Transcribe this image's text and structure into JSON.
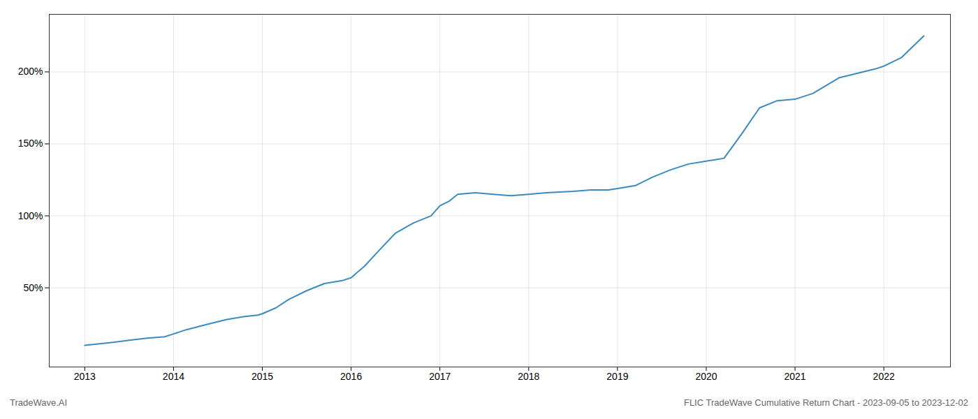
{
  "chart_data": {
    "type": "line",
    "title": "FLIC TradeWave Cumulative Return Chart - 2023-09-05 to 2023-12-02",
    "watermark": "TradeWave.AI",
    "color": "#3a8bbf",
    "grid": true,
    "x": [
      2013.0,
      2013.15,
      2013.3,
      2013.5,
      2013.7,
      2013.9,
      2014.0,
      2014.15,
      2014.4,
      2014.6,
      2014.8,
      2014.95,
      2015.0,
      2015.15,
      2015.3,
      2015.5,
      2015.7,
      2015.9,
      2016.0,
      2016.15,
      2016.3,
      2016.5,
      2016.7,
      2016.9,
      2017.0,
      2017.1,
      2017.2,
      2017.4,
      2017.6,
      2017.8,
      2018.0,
      2018.2,
      2018.5,
      2018.7,
      2018.9,
      2019.0,
      2019.2,
      2019.4,
      2019.6,
      2019.8,
      2020.0,
      2020.1,
      2020.2,
      2020.4,
      2020.6,
      2020.8,
      2021.0,
      2021.2,
      2021.5,
      2021.7,
      2021.9,
      2022.0,
      2022.2,
      2022.45
    ],
    "values": [
      10,
      11,
      12,
      13.5,
      15,
      16,
      18,
      21,
      25,
      28,
      30,
      31,
      32,
      36,
      42,
      48,
      53,
      55,
      57,
      65,
      75,
      88,
      95,
      100,
      107,
      110,
      115,
      116,
      115,
      114,
      115,
      116,
      117,
      118,
      118,
      119,
      121,
      127,
      132,
      136,
      138,
      139,
      140,
      157,
      175,
      180,
      181,
      185,
      196,
      199,
      202,
      204,
      210,
      225
    ],
    "xlim": [
      2012.6,
      2022.75
    ],
    "xticks": [
      2013,
      2014,
      2015,
      2016,
      2017,
      2018,
      2019,
      2020,
      2021,
      2022
    ],
    "ylim": [
      -5,
      240
    ],
    "yticks": [
      {
        "value": 50,
        "label": "50%"
      },
      {
        "value": 100,
        "label": "100%"
      },
      {
        "value": 150,
        "label": "150%"
      },
      {
        "value": 200,
        "label": "200%"
      }
    ]
  }
}
